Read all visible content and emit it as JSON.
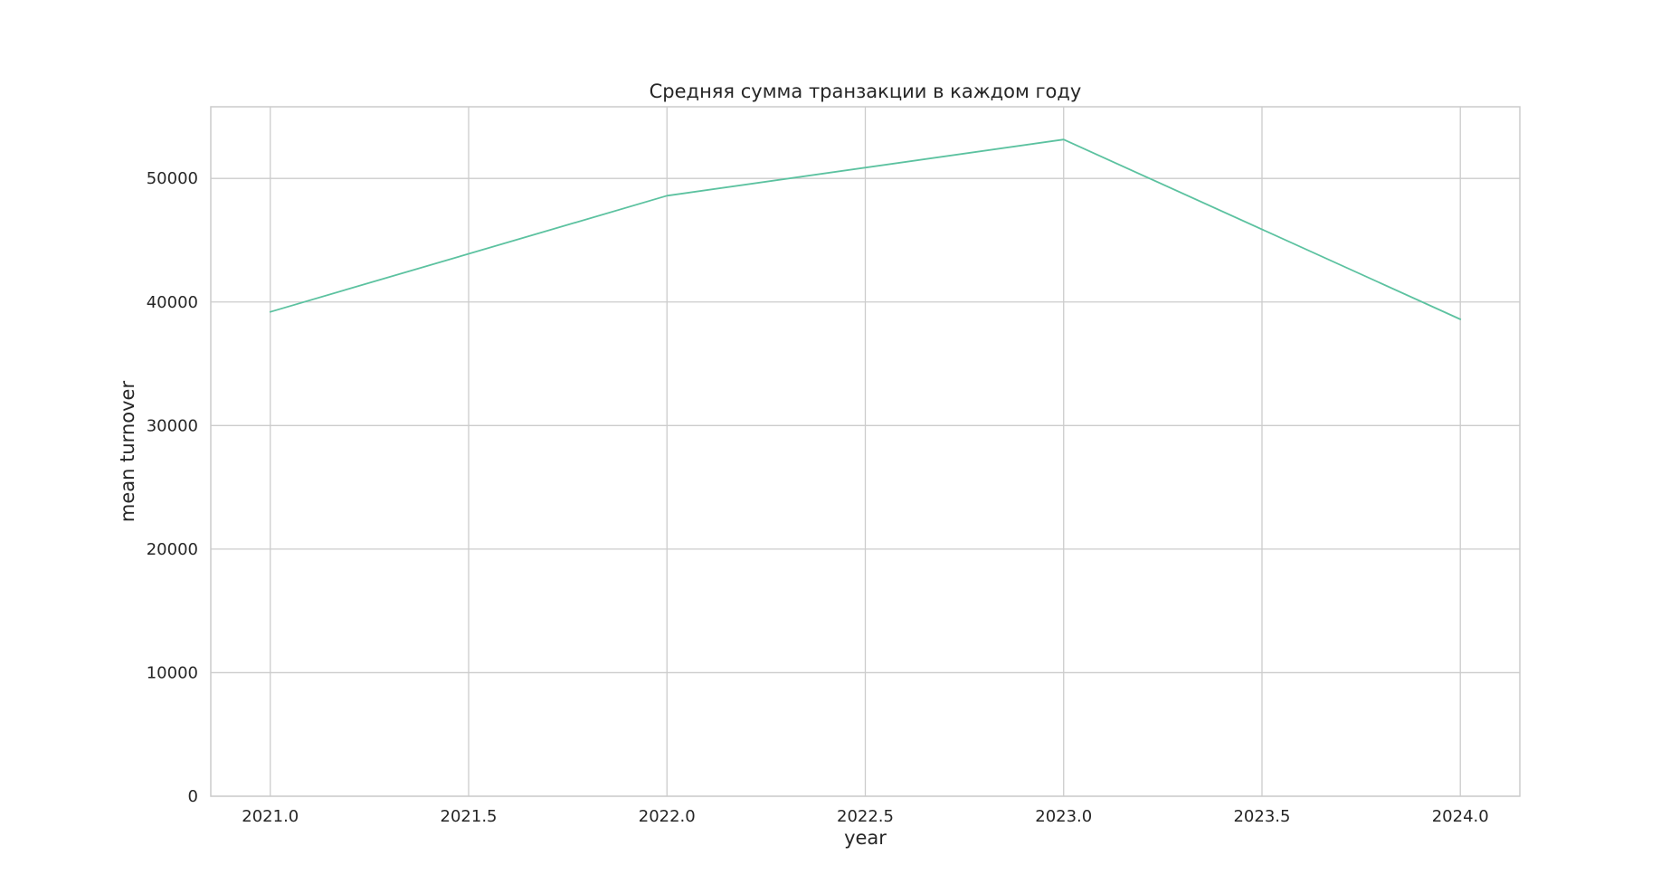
{
  "chart_data": {
    "type": "line",
    "title": "Средняя сумма транзакции в каждом году",
    "xlabel": "year",
    "ylabel": "mean turnover",
    "xlim": [
      2020.85,
      2024.15
    ],
    "ylim": [
      0,
      55800
    ],
    "x_ticks": [
      "2021.0",
      "2021.5",
      "2022.0",
      "2022.5",
      "2023.0",
      "2023.5",
      "2024.0"
    ],
    "y_ticks": [
      "0",
      "10000",
      "20000",
      "30000",
      "40000",
      "50000"
    ],
    "grid": true,
    "series": [
      {
        "x": [
          2021,
          2022,
          2023,
          2024
        ],
        "y": [
          39200,
          48600,
          53150,
          38600
        ],
        "color": "#5cc2a0"
      }
    ]
  }
}
